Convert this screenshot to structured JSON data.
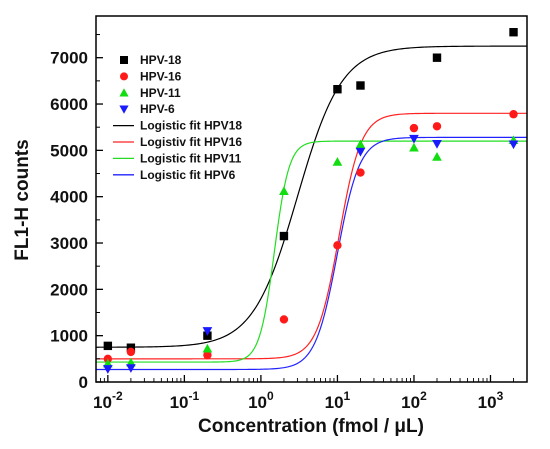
{
  "chart_data": {
    "type": "scatter",
    "xlabel": "Concentration (fmol / μL)",
    "ylabel": "FL1-H counts",
    "xscale": "log",
    "xlim": [
      0.007,
      3000
    ],
    "ylim": [
      0,
      7900
    ],
    "x_ticks": [
      {
        "value": 0.01,
        "base": "10",
        "exp": "-2"
      },
      {
        "value": 0.1,
        "base": "10",
        "exp": "-1"
      },
      {
        "value": 1,
        "base": "10",
        "exp": "0"
      },
      {
        "value": 10,
        "base": "10",
        "exp": "1"
      },
      {
        "value": 100,
        "base": "10",
        "exp": "2"
      },
      {
        "value": 1000,
        "base": "10",
        "exp": "3"
      }
    ],
    "y_ticks": [
      0,
      1000,
      2000,
      3000,
      4000,
      5000,
      6000,
      7000
    ],
    "y_tick_labels": [
      "0",
      "1000",
      "2000",
      "3000",
      "4000",
      "5000",
      "6000",
      "7000"
    ],
    "legend_position": "top-left",
    "series": [
      {
        "name": "HPV-18",
        "color": "#000000",
        "marker": "square",
        "x": [
          0.01,
          0.02,
          0.2,
          2,
          10,
          20,
          200,
          2000
        ],
        "y": [
          780,
          740,
          1000,
          3150,
          6320,
          6400,
          7000,
          7550
        ]
      },
      {
        "name": "HPV-16",
        "color": "#ff1a1a",
        "marker": "circle",
        "x": [
          0.01,
          0.02,
          0.2,
          2,
          10,
          20,
          100,
          200,
          2000
        ],
        "y": [
          500,
          650,
          580,
          1350,
          2950,
          4520,
          5480,
          5520,
          5780
        ]
      },
      {
        "name": "HPV-11",
        "color": "#11dd11",
        "marker": "triangle-up",
        "x": [
          0.01,
          0.02,
          0.2,
          2,
          10,
          20,
          100,
          200,
          2000
        ],
        "y": [
          400,
          420,
          720,
          4120,
          4750,
          5130,
          5060,
          4860,
          5220
        ]
      },
      {
        "name": "HPV-6",
        "color": "#1a1aff",
        "marker": "triangle-down",
        "x": [
          0.01,
          0.02,
          0.2,
          20,
          100,
          200,
          2000
        ],
        "y": [
          280,
          300,
          1100,
          4970,
          5250,
          5140,
          5130
        ]
      }
    ],
    "fits": [
      {
        "name": "Logistic fit HPV18",
        "color": "#000000",
        "A1": 750,
        "A2": 7250,
        "x0": 3.0,
        "p": 1.5
      },
      {
        "name": "Logistiv fit HPV16",
        "color": "#ff2222",
        "A1": 500,
        "A2": 5800,
        "x0": 10.5,
        "p": 3.0
      },
      {
        "name": "Logistic fit HPV11",
        "color": "#22dd22",
        "A1": 430,
        "A2": 5200,
        "x0": 1.5,
        "p": 4.5
      },
      {
        "name": "Logistic fit HPV6",
        "color": "#2222ff",
        "A1": 270,
        "A2": 5280,
        "x0": 10.0,
        "p": 3.0
      }
    ]
  }
}
